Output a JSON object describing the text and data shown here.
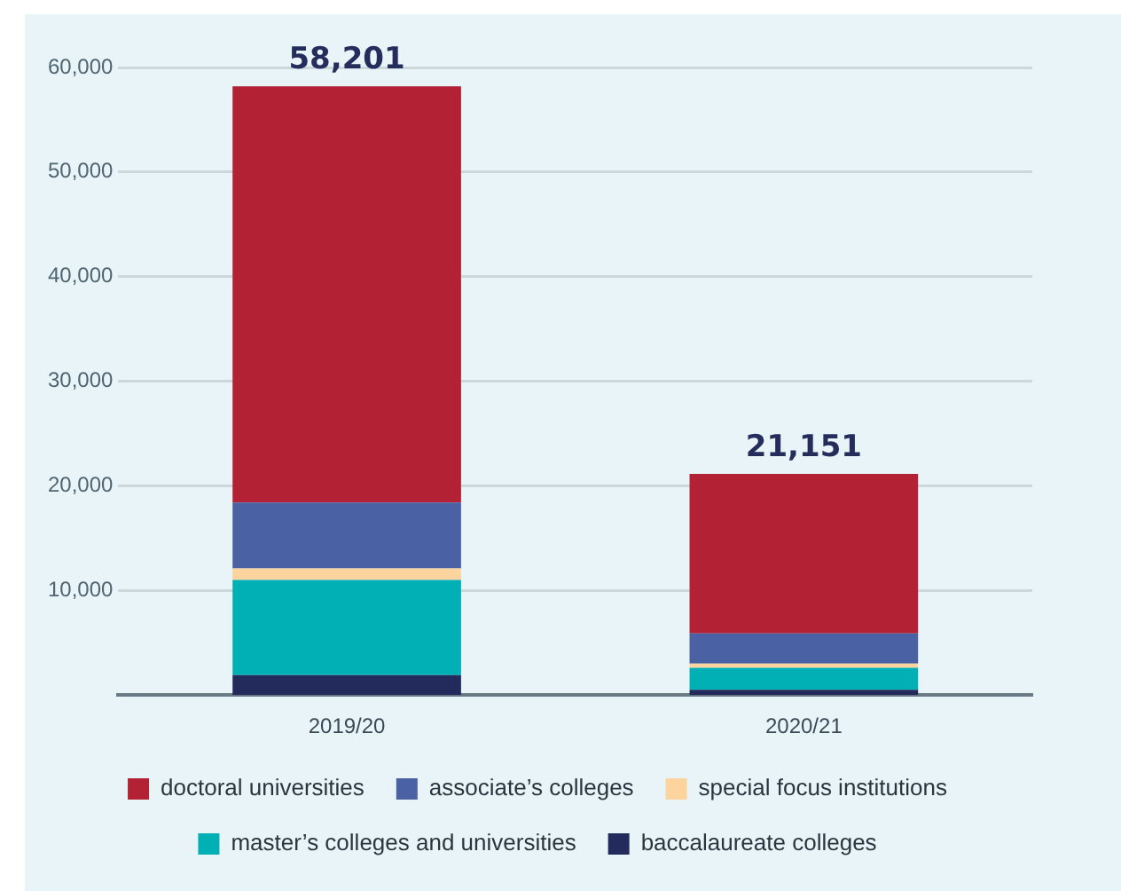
{
  "chart_data": {
    "type": "bar",
    "stacked": true,
    "categories": [
      "2019/20",
      "2020/21"
    ],
    "series": [
      {
        "name": "baccalaureate colleges",
        "color": "#232a5c",
        "values": [
          1900,
          500
        ]
      },
      {
        "name": "master’s colleges and universities",
        "color": "#00b0b5",
        "values": [
          9100,
          2100
        ]
      },
      {
        "name": "special focus institutions",
        "color": "#fdd49e",
        "values": [
          1100,
          400
        ]
      },
      {
        "name": "associate’s colleges",
        "color": "#4a62a3",
        "values": [
          6300,
          2900
        ]
      },
      {
        "name": "doctoral universities",
        "color": "#b22234",
        "values": [
          39801,
          15251
        ]
      }
    ],
    "totals": [
      "58,201",
      "21,151"
    ],
    "ylim": [
      0,
      60000
    ],
    "yticks": [
      {
        "value": 10000,
        "label": "10,000"
      },
      {
        "value": 20000,
        "label": "20,000"
      },
      {
        "value": 30000,
        "label": "30,000"
      },
      {
        "value": 40000,
        "label": "40,000"
      },
      {
        "value": 50000,
        "label": "50,000"
      },
      {
        "value": 60000,
        "label": "60,000"
      }
    ],
    "grid": "y",
    "legend": "bottom"
  }
}
